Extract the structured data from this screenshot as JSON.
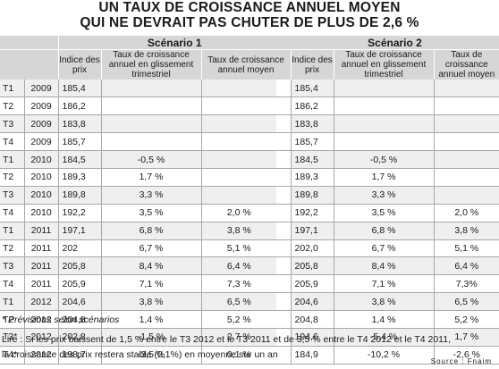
{
  "title": {
    "line1": "UN TAUX DE CROISSANCE ANNUEL MOYEN",
    "line2": "QUI NE DEVRAIT PAS CHUTER DE PLUS DE 2,6 %"
  },
  "scenario1": {
    "label": "Scénario 1",
    "col_index": "Indice des prix",
    "col_quarterly": "Taux de croissance annuel en glissement trimestriel",
    "col_annual": "Taux de croissance annuel moyen"
  },
  "scenario2": {
    "label": "Scénario 2",
    "col_index": "Indice des prix",
    "col_quarterly": "Taux de croissance annuel en glissement trimestriel",
    "col_annual": "Taux de croissance annuel moyen"
  },
  "rows": [
    {
      "q": "T1",
      "y": "2009",
      "i1": "185,4",
      "g1": "",
      "a1": "",
      "i2": "185,4",
      "g2": "",
      "a2": ""
    },
    {
      "q": "T2",
      "y": "2009",
      "i1": "186,2",
      "g1": "",
      "a1": "",
      "i2": "186,2",
      "g2": "",
      "a2": ""
    },
    {
      "q": "T3",
      "y": "2009",
      "i1": "183,8",
      "g1": "",
      "a1": "",
      "i2": "183,8",
      "g2": "",
      "a2": ""
    },
    {
      "q": "T4",
      "y": "2009",
      "i1": "185,7",
      "g1": "",
      "a1": "",
      "i2": "185,7",
      "g2": "",
      "a2": ""
    },
    {
      "q": "T1",
      "y": "2010",
      "i1": "184,5",
      "g1": "-0,5 %",
      "a1": "",
      "i2": "184,5",
      "g2": "-0,5 %",
      "a2": ""
    },
    {
      "q": "T2",
      "y": "2010",
      "i1": "189,3",
      "g1": "1,7 %",
      "a1": "",
      "i2": "189,3",
      "g2": "1,7 %",
      "a2": ""
    },
    {
      "q": "T3",
      "y": "2010",
      "i1": "189,8",
      "g1": "3,3 %",
      "a1": "",
      "i2": "189,8",
      "g2": "3,3 %",
      "a2": ""
    },
    {
      "q": "T4",
      "y": "2010",
      "i1": "192,2",
      "g1": "3,5 %",
      "a1": "2,0 %",
      "i2": "192,2",
      "g2": "3,5 %",
      "a2": "2,0 %"
    },
    {
      "q": "T1",
      "y": "2011",
      "i1": "197,1",
      "g1": "6,8 %",
      "a1": "3,8 %",
      "i2": "197,1",
      "g2": "6,8 %",
      "a2": "3,8 %"
    },
    {
      "q": "T2",
      "y": "2011",
      "i1": "202",
      "g1": "6,7 %",
      "a1": "5,1 %",
      "i2": "202,0",
      "g2": "6,7 %",
      "a2": "5,1 %"
    },
    {
      "q": "T3",
      "y": "2011",
      "i1": "205,8",
      "g1": "8,4 %",
      "a1": "6,4 %",
      "i2": "205,8",
      "g2": "8,4 %",
      "a2": "6,4 %"
    },
    {
      "q": "T4",
      "y": "2011",
      "i1": "205,9",
      "g1": "7,1 %",
      "a1": "7,3 %",
      "i2": "205,9",
      "g2": "7,1 %",
      "a2": "7,3%"
    },
    {
      "q": "T1",
      "y": "2012",
      "i1": "204,6",
      "g1": "3,8 %",
      "a1": "6,5 %",
      "i2": "204,6",
      "g2": "3,8 %",
      "a2": "6,5 %"
    },
    {
      "q": "T2",
      "y": "2012",
      "i1": "204,8",
      "g1": "1,4 %",
      "a1": "5,2 %",
      "i2": "204,8",
      "g2": "1,4 %",
      "a2": "5,2 %"
    },
    {
      "q": "T3*",
      "y": "2012",
      "i1": "202,8",
      "g1": "-1,5 %",
      "a1": "2,7 %",
      "i2": "194,6",
      "g2": "-5,4 %",
      "a2": "1,7 %"
    },
    {
      "q": "T4*",
      "y": "2012",
      "i1": "198,7",
      "g1": "-3,5 %",
      "a1": "0,1 %",
      "i2": "184,9",
      "g2": "-10,2 %",
      "a2": "-2,6 %"
    }
  ],
  "footnote": "* Prévisions selon scénarios",
  "reading_note": {
    "line1": "Lire : Si les prix baissent de 1,5 % entre le T3 2012 et le T3 2011 et de 3,5 % entre le T4 2012 et le T4 2011,",
    "line2": "la croissance des prix restera stable (0,1%) en moyenne sur un an"
  },
  "source": "Source : Fnaim"
}
